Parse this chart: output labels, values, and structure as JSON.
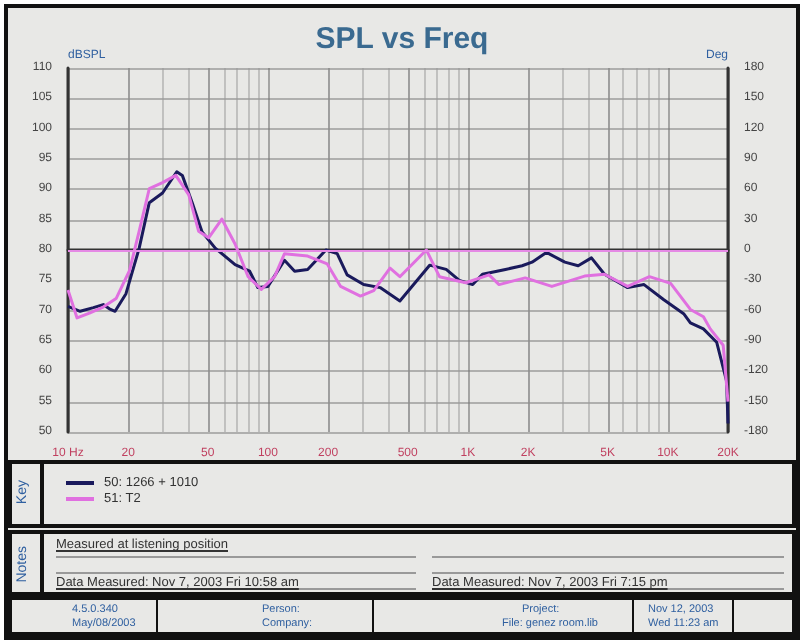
{
  "chart_data": {
    "type": "line",
    "title": "SPL vs Freq",
    "ylabel": "dBSPL",
    "y2label": "Deg",
    "log": "x",
    "grid": true,
    "legend": "bottom",
    "xlim": [
      10,
      20000
    ],
    "xticks": [
      {
        "value": 10,
        "label": "10 Hz"
      },
      20,
      50,
      100,
      200,
      500,
      {
        "value": 1000,
        "label": "1K"
      },
      {
        "value": 2000,
        "label": "2K"
      },
      {
        "value": 5000,
        "label": "5K"
      },
      {
        "value": 10000,
        "label": "10K"
      },
      {
        "value": 20000,
        "label": "20K"
      }
    ],
    "ylim": [
      50,
      110
    ],
    "yticks": [
      50,
      55,
      60,
      65,
      70,
      75,
      80,
      85,
      90,
      95,
      100,
      105,
      110
    ],
    "y2lim": [
      -180,
      180
    ],
    "y2ticks": [
      -180,
      -150,
      -120,
      -90,
      -60,
      -30,
      0,
      30,
      60,
      90,
      120,
      150,
      180
    ],
    "ref_lines": [
      {
        "axis": "y2",
        "value": 0,
        "color": "#e58ae5"
      }
    ],
    "series": [
      {
        "name": "50: 1266 + 1010",
        "color": "#1a1a5c",
        "x": [
          10,
          11.5,
          13.4,
          15,
          16.1,
          17.2,
          19.5,
          22.7,
          25.5,
          29.7,
          35,
          37.3,
          41.8,
          46.8,
          54.5,
          68.5,
          81,
          89,
          100,
          121,
          136,
          158,
          195,
          222,
          249,
          301,
          364,
          457,
          644,
          779,
          906,
          1057,
          1183,
          1542,
          1867,
          2094,
          2472,
          3055,
          3562,
          4150,
          4822,
          6295,
          7603,
          9550,
          12000,
          12970,
          15070,
          17550,
          19680,
          20000
        ],
        "values": [
          70.7,
          69.9,
          70.5,
          71,
          70.3,
          69.9,
          72.8,
          80.3,
          87.8,
          89.4,
          92.9,
          92.3,
          87.8,
          83,
          80.3,
          77.6,
          76.5,
          73.8,
          74,
          78.3,
          76.5,
          76.8,
          80,
          79.4,
          75.9,
          74.3,
          73.8,
          71.6,
          77.5,
          76.8,
          75,
          74.3,
          76,
          76.8,
          77.4,
          78,
          79.6,
          78,
          77.4,
          78.7,
          76,
          73.8,
          74.3,
          71.8,
          69.5,
          68,
          67,
          64.8,
          58.4,
          51.4
        ]
      },
      {
        "name": "51: T2",
        "color": "#e070e0",
        "x": [
          10,
          11.1,
          12.8,
          15,
          17.4,
          20.3,
          22.7,
          25.5,
          29.7,
          34.6,
          40.2,
          45,
          50.5,
          58.8,
          68.5,
          79.6,
          92.7,
          108,
          121,
          158,
          198,
          231,
          290,
          338,
          408,
          457,
          620,
          721,
          977,
          1276,
          1432,
          1936,
          2630,
          3837,
          4822,
          6295,
          8091,
          10330,
          12970,
          15070,
          16300,
          18920,
          20000
        ],
        "values": [
          73.4,
          68.8,
          69.6,
          70.6,
          72,
          76.6,
          83.1,
          90.1,
          91.1,
          92.3,
          89.1,
          83.1,
          82,
          85.1,
          81,
          75.6,
          73.5,
          75.6,
          79.4,
          79,
          77.7,
          74,
          72.4,
          73.3,
          77,
          75.6,
          80,
          75.6,
          74.6,
          75.9,
          74.3,
          75.4,
          74,
          75.7,
          76,
          74,
          75.6,
          74.5,
          70.2,
          69,
          67,
          64.3,
          55
        ]
      }
    ],
    "annotations": [
      "Key",
      "Notes",
      "Measured at listening position",
      "Data Measured: Nov 7, 2003 Fri 10:58 am",
      "Data Measured: Nov 7, 2003 Fri 7:15 pm",
      "4.5.0.340",
      "May/08/2003",
      "Person:",
      "Company:",
      "Project:",
      "File: genez room.lib",
      "Nov 12, 2003",
      "Wed 11:23 am"
    ]
  }
}
